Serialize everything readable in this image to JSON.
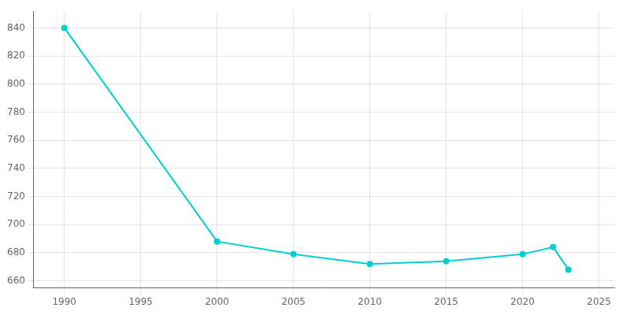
{
  "chart_data": {
    "type": "line",
    "x": [
      1990,
      2000,
      2005,
      2010,
      2015,
      2020,
      2022,
      2023
    ],
    "values": [
      840,
      688,
      679,
      672,
      674,
      679,
      684,
      668
    ],
    "color": "#00CED1",
    "marker": "circle",
    "xlim": [
      1988,
      2026
    ],
    "xticks": [
      1990,
      1995,
      2000,
      2005,
      2010,
      2015,
      2020,
      2025
    ],
    "ylim": [
      655,
      852
    ],
    "yticks": [
      660,
      680,
      700,
      720,
      740,
      760,
      780,
      800,
      820,
      840
    ],
    "grid": true
  }
}
